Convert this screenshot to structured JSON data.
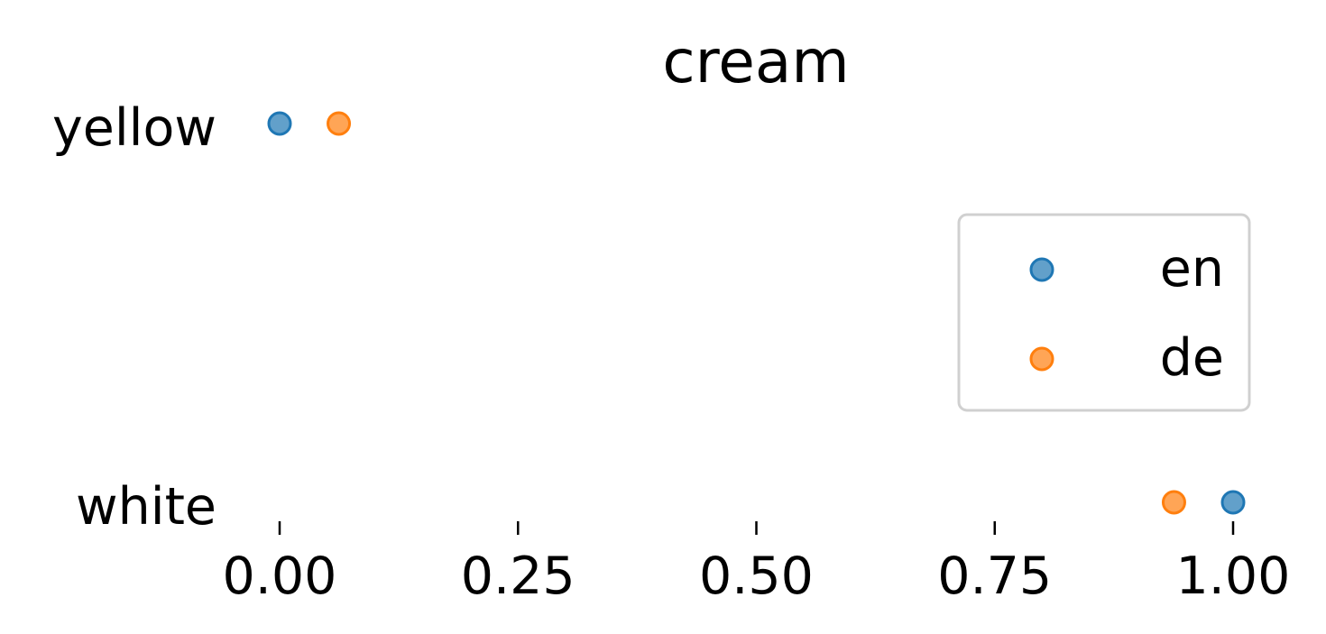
{
  "chart_data": {
    "type": "scatter",
    "title": "cream",
    "xlabel": "",
    "ylabel": "",
    "xlim": [
      0,
      1
    ],
    "x_ticks": [
      "0.00",
      "0.25",
      "0.50",
      "0.75",
      "1.00"
    ],
    "x_tick_values": [
      0,
      0.25,
      0.5,
      0.75,
      1.0
    ],
    "categories": [
      "yellow",
      "white"
    ],
    "series": [
      {
        "name": "en",
        "color": "#1f77b4",
        "values": [
          0.0,
          1.0
        ]
      },
      {
        "name": "de",
        "color": "#ff7f0e",
        "values": [
          0.062,
          0.938
        ]
      }
    ],
    "legend": {
      "position": "right",
      "entries": [
        "en",
        "de"
      ]
    },
    "grid": false
  }
}
